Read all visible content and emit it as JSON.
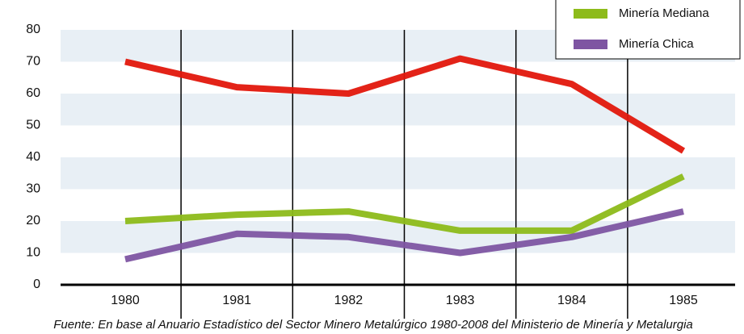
{
  "chart_data": {
    "type": "line",
    "categories": [
      "1980",
      "1981",
      "1982",
      "1983",
      "1984",
      "1985"
    ],
    "series": [
      {
        "color": "#e2170c",
        "values": [
          70,
          62,
          60,
          71,
          63,
          42
        ]
      },
      {
        "name": "Minería Mediana",
        "color": "#8dbb1a",
        "values": [
          20,
          22,
          23,
          17,
          17,
          34
        ]
      },
      {
        "name": "Minería Chica",
        "color": "#7e55a2",
        "values": [
          8,
          16,
          15,
          10,
          15,
          23
        ]
      }
    ],
    "ylim": [
      0,
      80
    ],
    "yticks": [
      0,
      10,
      20,
      30,
      40,
      50,
      60,
      70,
      80
    ],
    "grid": true,
    "legend": "upper right",
    "source": "Fuente: En base al Anuario Estadístico del Sector Minero Metalúrgico 1980-2008 del Ministerio de Minería y Metalurgia"
  }
}
